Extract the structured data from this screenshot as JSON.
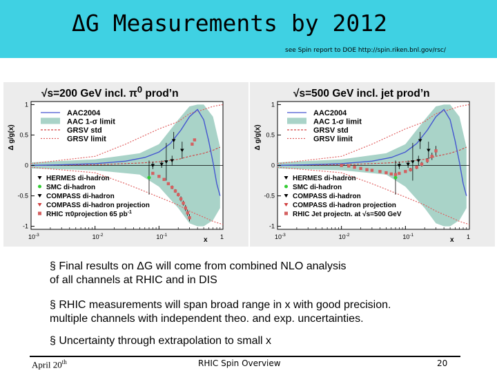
{
  "slide": {
    "title": "ΔG Measurements by 2012",
    "source_note": "see Spin report to DOE http://spin.riken.bnl.gov/rsc/"
  },
  "bullets": [
    {
      "lines": [
        "§ Final results on ΔG will come from combined NLO analysis",
        "of all channels at RHIC and in DIS"
      ]
    },
    {
      "lines": [
        "§ RHIC measurements will span broad range in x with good  precision.",
        "multiple channels with independent theo. and exp. uncertainties."
      ]
    },
    {
      "lines": [
        "§ Uncertainty through extrapolation to small x"
      ]
    }
  ],
  "footer": {
    "date_main": "April 20",
    "date_sup": "th",
    "center": "RHIC Spin Overview",
    "page": "20"
  },
  "colors": {
    "header_bg": "#3fd1e3",
    "band": "#a9d3c8",
    "aac": "#4455d0",
    "grsv_std": "#d04040",
    "grsv_limit": "#e06060",
    "hermes": "#000000",
    "smc": "#33cc33",
    "compass": "#000000",
    "rhic_proj": "#d46060"
  },
  "chart_data": [
    {
      "type": "line",
      "title": "√s=200 GeV incl. π",
      "title_sup": "0",
      "title_suffix": " prod’n",
      "xlabel": "x",
      "ylabel": "Δ g/g(x)",
      "xscale": "log",
      "xlim": [
        0.001,
        1
      ],
      "ylim": [
        -1.05,
        1.05
      ],
      "x_ticks": [
        "10",
        "10",
        "10",
        "1"
      ],
      "x_tick_exps": [
        "-3",
        "-2",
        "-1",
        ""
      ],
      "y_ticks": [
        "1",
        "0.5",
        "0",
        "-0.5",
        "-1"
      ],
      "legend_top": [
        "AAC2004",
        "AAC 1-σ limit",
        "GRSV std",
        "GRSV limit"
      ],
      "legend_bottom": [
        "HERMES di-hadron",
        "SMC di-hadron",
        "COMPASS di-hadron",
        "COMPASS di-hadron projection",
        "RHIC π0projection 65 pb"
      ],
      "legend_bottom_sup": [
        "",
        "",
        "",
        "",
        "-1"
      ],
      "series": [
        {
          "name": "AAC2004",
          "x": [
            0.001,
            0.003,
            0.01,
            0.03,
            0.06,
            0.1,
            0.15,
            0.22,
            0.3,
            0.4,
            0.5,
            0.6,
            0.7,
            0.8,
            0.9
          ],
          "y": [
            0.0,
            0.01,
            0.03,
            0.07,
            0.13,
            0.22,
            0.36,
            0.58,
            0.8,
            0.92,
            0.75,
            0.4,
            0.05,
            -0.3,
            -0.5
          ]
        },
        {
          "name": "AAC 1-σ limit",
          "x": [
            0.001,
            0.01,
            0.05,
            0.1,
            0.2,
            0.3,
            0.4,
            0.5,
            0.7,
            0.9
          ],
          "y_high": [
            0.05,
            0.1,
            0.2,
            0.35,
            0.75,
            0.97,
            1.0,
            1.0,
            0.8,
            0.3
          ],
          "y_low": [
            -0.05,
            -0.08,
            -0.15,
            -0.35,
            -0.7,
            -0.95,
            -1.0,
            -1.0,
            -0.9,
            -0.7
          ]
        },
        {
          "name": "GRSV std",
          "x": [
            0.001,
            0.01,
            0.05,
            0.1,
            0.2,
            0.3,
            0.5,
            0.7,
            0.9
          ],
          "y": [
            0.0,
            0.01,
            0.04,
            0.06,
            0.1,
            0.15,
            0.2,
            0.25,
            0.3
          ]
        },
        {
          "name": "GRSV limit",
          "x": [
            0.001,
            0.01,
            0.03,
            0.1,
            0.2,
            0.3,
            0.5,
            0.7,
            1.0
          ],
          "y_high": [
            0.03,
            0.15,
            0.35,
            0.6,
            0.72,
            0.85,
            0.92,
            0.97,
            1.0
          ],
          "y_low": [
            -0.03,
            -0.12,
            -0.3,
            -0.52,
            -0.65,
            -0.75,
            -0.85,
            -0.92,
            -0.97
          ]
        }
      ],
      "points": [
        {
          "name": "HERMES di-hadron",
          "marker": "triangle",
          "x": [
            0.17
          ],
          "y": [
            0.41
          ],
          "err": [
            0.14
          ]
        },
        {
          "name": "SMC di-hadron",
          "marker": "circle",
          "x": [
            0.07
          ],
          "y": [
            -0.2
          ],
          "err": [
            0.28
          ]
        },
        {
          "name": "COMPASS di-hadron",
          "marker": "triangle",
          "x": [
            0.13
          ],
          "y": [
            0.06
          ],
          "err": [
            0.31
          ]
        },
        {
          "name": "COMPASS di-hadron projection",
          "marker": "triangle",
          "x": [
            0.08,
            0.11,
            0.16,
            0.23
          ],
          "y": [
            0.0,
            0.02,
            0.08,
            0.25
          ],
          "err": [
            0.06,
            0.06,
            0.08,
            0.14
          ]
        },
        {
          "name": "RHIC π0projection 65 pb",
          "marker": "square",
          "x": [
            0.08,
            0.1,
            0.12,
            0.14,
            0.16,
            0.18,
            0.2,
            0.22,
            0.24,
            0.26,
            0.28,
            0.3,
            0.33,
            0.36
          ],
          "y": [
            -0.13,
            -0.18,
            -0.23,
            -0.3,
            -0.36,
            -0.42,
            -0.48,
            -0.55,
            -0.62,
            -0.7,
            -0.78,
            -0.86,
            0.35,
            0.42
          ],
          "err": [
            0.02,
            0.02,
            0.02,
            0.02,
            0.03,
            0.03,
            0.03,
            0.04,
            0.04,
            0.05,
            0.05,
            0.06,
            0.02,
            0.02
          ]
        }
      ]
    },
    {
      "type": "line",
      "title": "√s=500 GeV incl. jet prod’n",
      "title_sup": "",
      "title_suffix": "",
      "xlabel": "x",
      "ylabel": "Δ g/g(x)",
      "xscale": "log",
      "xlim": [
        0.001,
        1
      ],
      "ylim": [
        -1.05,
        1.05
      ],
      "x_ticks": [
        "10",
        "10",
        "10",
        "1"
      ],
      "x_tick_exps": [
        "-3",
        "-2",
        "-1",
        ""
      ],
      "y_ticks": [
        "1",
        "0.5",
        "0",
        "-0.5",
        "-1"
      ],
      "legend_top": [
        "AAC2004",
        "AAC 1-σ limit",
        "GRSV std",
        "GRSV limit"
      ],
      "legend_bottom": [
        "HERMES di-hadron",
        "SMC di-hadron",
        "COMPASS di-hadron",
        "COMPASS di-hadron projection",
        "RHIC Jet projectn. at √s=500 GeV"
      ],
      "legend_bottom_sup": [
        "",
        "",
        "",
        "",
        ""
      ],
      "series": [
        {
          "name": "AAC2004",
          "x": [
            0.001,
            0.003,
            0.01,
            0.03,
            0.06,
            0.1,
            0.15,
            0.22,
            0.3,
            0.4,
            0.5,
            0.6,
            0.7,
            0.8,
            0.9
          ],
          "y": [
            0.0,
            0.01,
            0.03,
            0.07,
            0.13,
            0.22,
            0.36,
            0.58,
            0.8,
            0.92,
            0.75,
            0.4,
            0.05,
            -0.3,
            -0.5
          ]
        },
        {
          "name": "AAC 1-σ limit",
          "x": [
            0.001,
            0.01,
            0.05,
            0.1,
            0.2,
            0.3,
            0.4,
            0.5,
            0.7,
            0.9
          ],
          "y_high": [
            0.05,
            0.1,
            0.2,
            0.35,
            0.75,
            0.97,
            1.0,
            1.0,
            0.8,
            0.3
          ],
          "y_low": [
            -0.05,
            -0.08,
            -0.15,
            -0.35,
            -0.7,
            -0.95,
            -1.0,
            -1.0,
            -0.9,
            -0.7
          ]
        },
        {
          "name": "GRSV std",
          "x": [
            0.001,
            0.01,
            0.05,
            0.1,
            0.2,
            0.3,
            0.5,
            0.7,
            0.9
          ],
          "y": [
            0.0,
            0.01,
            0.04,
            0.06,
            0.1,
            0.15,
            0.2,
            0.25,
            0.3
          ]
        },
        {
          "name": "GRSV limit",
          "x": [
            0.001,
            0.01,
            0.03,
            0.1,
            0.2,
            0.3,
            0.5,
            0.7,
            1.0
          ],
          "y_high": [
            0.03,
            0.15,
            0.35,
            0.6,
            0.72,
            0.85,
            0.92,
            0.97,
            1.0
          ],
          "y_low": [
            -0.03,
            -0.12,
            -0.3,
            -0.52,
            -0.65,
            -0.75,
            -0.85,
            -0.92,
            -0.97
          ]
        }
      ],
      "points": [
        {
          "name": "HERMES di-hadron",
          "marker": "triangle",
          "x": [
            0.17
          ],
          "y": [
            0.41
          ],
          "err": [
            0.14
          ]
        },
        {
          "name": "SMC di-hadron",
          "marker": "circle",
          "x": [
            0.07
          ],
          "y": [
            -0.2
          ],
          "err": [
            0.28
          ]
        },
        {
          "name": "COMPASS di-hadron",
          "marker": "triangle",
          "x": [
            0.13
          ],
          "y": [
            0.06
          ],
          "err": [
            0.31
          ]
        },
        {
          "name": "COMPASS di-hadron projection",
          "marker": "triangle",
          "x": [
            0.08,
            0.11,
            0.16,
            0.23
          ],
          "y": [
            0.0,
            0.02,
            0.08,
            0.25
          ],
          "err": [
            0.06,
            0.06,
            0.08,
            0.14
          ]
        },
        {
          "name": "RHIC Jet projectn. at √s=500 GeV",
          "marker": "square",
          "x": [
            0.01,
            0.013,
            0.016,
            0.02,
            0.025,
            0.03,
            0.04,
            0.05,
            0.06,
            0.07,
            0.08,
            0.1,
            0.12,
            0.15,
            0.18,
            0.22,
            0.26,
            0.3
          ],
          "y": [
            0.0,
            -0.01,
            -0.03,
            -0.05,
            -0.07,
            -0.08,
            -0.1,
            -0.12,
            -0.14,
            -0.15,
            -0.13,
            -0.1,
            -0.07,
            -0.03,
            0.02,
            0.08,
            0.15,
            0.24
          ],
          "err": [
            0.02,
            0.02,
            0.02,
            0.02,
            0.02,
            0.02,
            0.02,
            0.02,
            0.02,
            0.02,
            0.02,
            0.02,
            0.03,
            0.03,
            0.04,
            0.04,
            0.06,
            0.08
          ]
        }
      ]
    }
  ]
}
